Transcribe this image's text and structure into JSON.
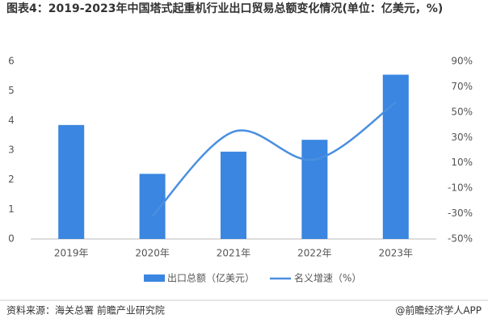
{
  "chart_data": {
    "type": "bar-line",
    "title": "图表4：2019-2023年中国塔式起重机行业出口贸易总额变化情况(单位：亿美元，%)",
    "categories": [
      "2019年",
      "2020年",
      "2021年",
      "2022年",
      "2023年"
    ],
    "series": [
      {
        "name": "出口总额（亿美元）",
        "color": "#3a86e0",
        "type": "bar",
        "values": [
          3.85,
          2.2,
          2.95,
          3.35,
          5.55
        ]
      },
      {
        "name": "名义增速（%）",
        "color": "#4a8fe0",
        "type": "line",
        "axis": "y2",
        "values": [
          null,
          -32,
          34.5,
          12.6,
          57.7
        ]
      }
    ],
    "ylim": [
      0,
      6
    ],
    "yticks": [
      0,
      1,
      2,
      3,
      4,
      5,
      6
    ],
    "y2lim": [
      -50,
      90
    ],
    "y2ticks": [
      {
        "value": -50,
        "label": "-50%"
      },
      {
        "value": -30,
        "label": "-30%"
      },
      {
        "value": -10,
        "label": "-10%"
      },
      {
        "value": 10,
        "label": "10%"
      },
      {
        "value": 30,
        "label": "30%"
      },
      {
        "value": 50,
        "label": "50%"
      },
      {
        "value": 70,
        "label": "70%"
      },
      {
        "value": 90,
        "label": "90%"
      }
    ],
    "source": "资料来源：海关总署 前瞻产业研究院",
    "credit": "@前瞻经济学人APP"
  }
}
